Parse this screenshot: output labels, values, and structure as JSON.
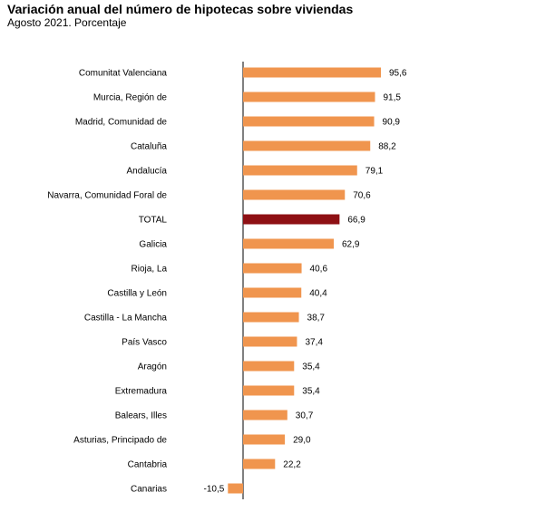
{
  "chart_data": {
    "type": "bar",
    "orientation": "horizontal",
    "title": "Variación anual del número de hipotecas sobre viviendas",
    "subtitle": "Agosto 2021. Porcentaje",
    "categories": [
      "Comunitat Valenciana",
      "Murcia, Región de",
      "Madrid, Comunidad de",
      "Cataluña",
      "Andalucía",
      "Navarra, Comunidad Foral de",
      "TOTAL",
      "Galicia",
      "Rioja, La",
      "Castilla y León",
      "Castilla - La Mancha",
      "País Vasco",
      "Aragón",
      "Extremadura",
      "Balears, Illes",
      "Asturias, Principado de",
      "Cantabria",
      "Canarias"
    ],
    "values": [
      95.6,
      91.5,
      90.9,
      88.2,
      79.1,
      70.6,
      66.9,
      62.9,
      40.6,
      40.4,
      38.7,
      37.4,
      35.4,
      35.4,
      30.7,
      29.0,
      22.2,
      -10.5
    ],
    "value_labels": [
      "95,6",
      "91,5",
      "90,9",
      "88,2",
      "79,1",
      "70,6",
      "66,9",
      "62,9",
      "40,6",
      "40,4",
      "38,7",
      "37,4",
      "35,4",
      "35,4",
      "30,7",
      "29,0",
      "22,2",
      "-10,5"
    ],
    "highlight_category": "TOTAL",
    "xlim": [
      -10.5,
      95.6
    ],
    "colors": {
      "bar": "#f0954e",
      "highlight": "#8e1014",
      "axis": "#000000"
    },
    "grid": false,
    "legend": "none"
  }
}
